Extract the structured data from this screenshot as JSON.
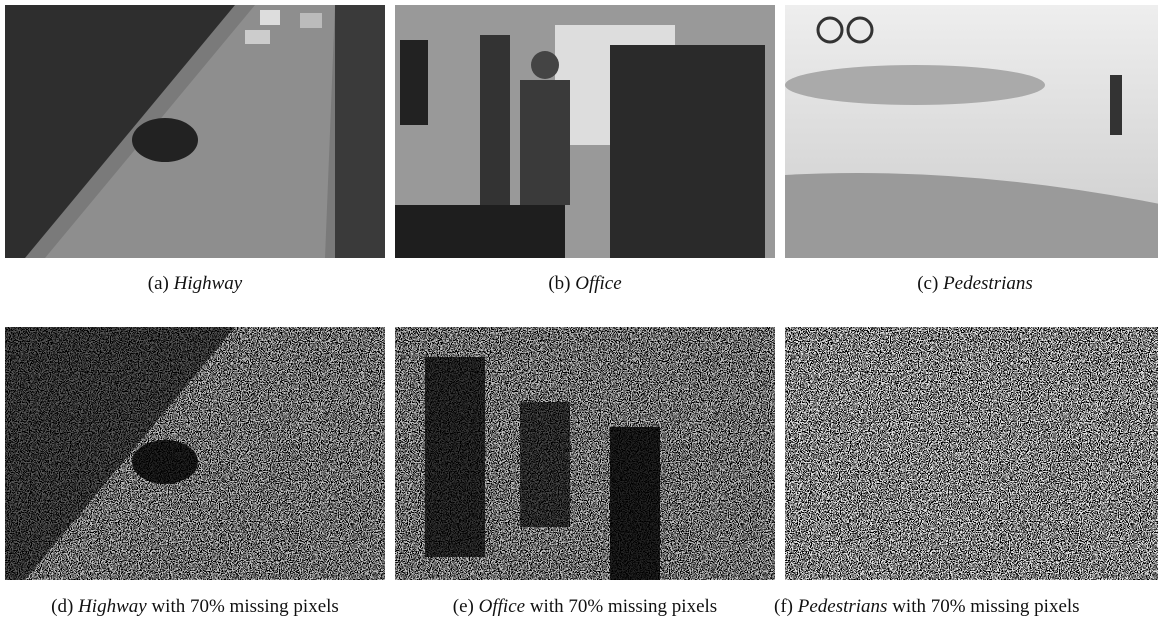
{
  "panels": [
    {
      "label": "(a)",
      "name": "Highway"
    },
    {
      "label": "(b)",
      "name": "Office"
    },
    {
      "label": "(c)",
      "name": "Pedestrians"
    },
    {
      "label": "(d)",
      "name": "Highway",
      "suffix": "with 70% missing pixels"
    },
    {
      "label": "(e)",
      "name": "Office",
      "suffix": "with 70% missing pixels"
    },
    {
      "label": "(f)",
      "name": "Pedestrians",
      "suffix": "with 70% missing pixels"
    }
  ]
}
